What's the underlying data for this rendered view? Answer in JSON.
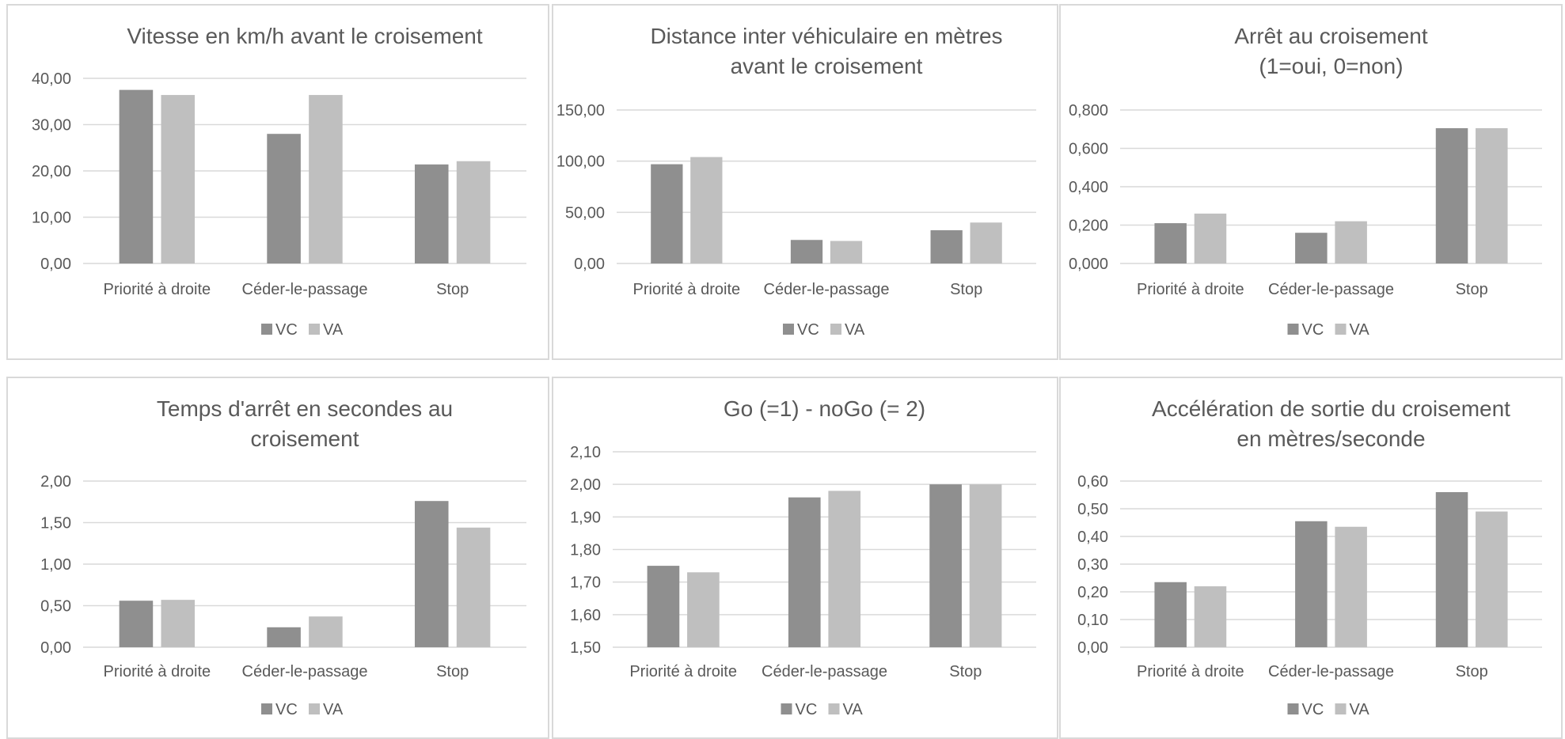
{
  "series_colors": {
    "VC": "#8f8f8f",
    "VA": "#bfbfbf"
  },
  "chart_data": [
    {
      "type": "bar",
      "title_lines": [
        "Vitesse en km/h avant le croisement"
      ],
      "categories": [
        "Priorité à droite",
        "Céder-le-passage",
        "Stop"
      ],
      "series": [
        {
          "name": "VC",
          "values": [
            37.5,
            28.0,
            21.4
          ]
        },
        {
          "name": "VA",
          "values": [
            36.4,
            36.4,
            22.1
          ]
        }
      ],
      "ylim": [
        0,
        40
      ],
      "yticks": [
        0,
        10,
        20,
        30,
        40
      ],
      "tick_labels": [
        "0,00",
        "10,00",
        "20,00",
        "30,00",
        "40,00"
      ],
      "grid": true,
      "legend": "bottom"
    },
    {
      "type": "bar",
      "title_lines": [
        "Distance inter véhiculaire en mètres",
        "avant le croisement"
      ],
      "categories": [
        "Priorité à droite",
        "Céder-le-passage",
        "Stop"
      ],
      "series": [
        {
          "name": "VC",
          "values": [
            97,
            23,
            32.5
          ]
        },
        {
          "name": "VA",
          "values": [
            104,
            22,
            40
          ]
        }
      ],
      "ylim": [
        0,
        150
      ],
      "yticks": [
        0,
        50,
        100,
        150
      ],
      "tick_labels": [
        "0,00",
        "50,00",
        "100,00",
        "150,00"
      ],
      "grid": true,
      "legend": "bottom"
    },
    {
      "type": "bar",
      "title_lines": [
        "Arrêt au croisement",
        "(1=oui, 0=non)"
      ],
      "categories": [
        "Priorité à droite",
        "Céder-le-passage",
        "Stop"
      ],
      "series": [
        {
          "name": "VC",
          "values": [
            0.21,
            0.16,
            0.705
          ]
        },
        {
          "name": "VA",
          "values": [
            0.26,
            0.22,
            0.705
          ]
        }
      ],
      "ylim": [
        0,
        0.8
      ],
      "yticks": [
        0,
        0.2,
        0.4,
        0.6,
        0.8
      ],
      "tick_labels": [
        "0,000",
        "0,200",
        "0,400",
        "0,600",
        "0,800"
      ],
      "grid": true,
      "legend": "bottom"
    },
    {
      "type": "bar",
      "title_lines": [
        "Temps d'arrêt en secondes au",
        "croisement"
      ],
      "categories": [
        "Priorité à droite",
        "Céder-le-passage",
        "Stop"
      ],
      "series": [
        {
          "name": "VC",
          "values": [
            0.56,
            0.24,
            1.76
          ]
        },
        {
          "name": "VA",
          "values": [
            0.57,
            0.37,
            1.44
          ]
        }
      ],
      "ylim": [
        0,
        2
      ],
      "yticks": [
        0,
        0.5,
        1,
        1.5,
        2
      ],
      "tick_labels": [
        "0,00",
        "0,50",
        "1,00",
        "1,50",
        "2,00"
      ],
      "grid": true,
      "legend": "bottom"
    },
    {
      "type": "bar",
      "title_lines": [
        "Go (=1) - noGo (= 2)"
      ],
      "categories": [
        "Priorité à droite",
        "Céder-le-passage",
        "Stop"
      ],
      "series": [
        {
          "name": "VC",
          "values": [
            1.75,
            1.96,
            2.0
          ]
        },
        {
          "name": "VA",
          "values": [
            1.73,
            1.98,
            2.0
          ]
        }
      ],
      "ylim": [
        1.5,
        2.1
      ],
      "yticks": [
        1.5,
        1.6,
        1.7,
        1.8,
        1.9,
        2.0,
        2.1
      ],
      "tick_labels": [
        "1,50",
        "1,60",
        "1,70",
        "1,80",
        "1,90",
        "2,00",
        "2,10"
      ],
      "grid": true,
      "legend": "bottom"
    },
    {
      "type": "bar",
      "title_lines": [
        "Accélération de sortie du croisement",
        "en mètres/seconde"
      ],
      "categories": [
        "Priorité à droite",
        "Céder-le-passage",
        "Stop"
      ],
      "series": [
        {
          "name": "VC",
          "values": [
            0.235,
            0.455,
            0.56
          ]
        },
        {
          "name": "VA",
          "values": [
            0.22,
            0.435,
            0.49
          ]
        }
      ],
      "ylim": [
        0,
        0.6
      ],
      "yticks": [
        0,
        0.1,
        0.2,
        0.3,
        0.4,
        0.5,
        0.6
      ],
      "tick_labels": [
        "0,00",
        "0,10",
        "0,20",
        "0,30",
        "0,40",
        "0,50",
        "0,60"
      ],
      "grid": true,
      "legend": "bottom"
    }
  ]
}
